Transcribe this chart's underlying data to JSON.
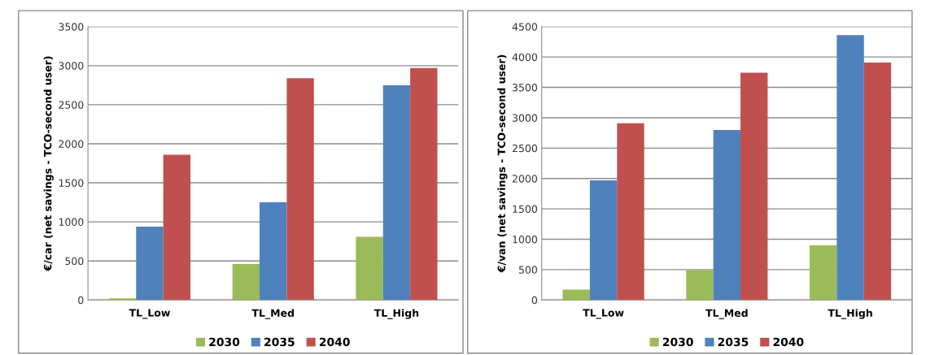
{
  "chart_data": [
    {
      "type": "bar",
      "ylabel": "€/car (net savings - TCO-second user)",
      "categories": [
        "TL_Low",
        "TL_Med",
        "TL_High"
      ],
      "ylim": [
        0,
        3500
      ],
      "yticks": [
        0,
        500,
        1000,
        1500,
        2000,
        2500,
        3000,
        3500
      ],
      "grid": "y",
      "legend": "bottom",
      "series": [
        {
          "name": "2030",
          "color": "#9bbb59",
          "values": [
            20,
            460,
            810
          ]
        },
        {
          "name": "2035",
          "color": "#4f81bd",
          "values": [
            940,
            1250,
            2750
          ]
        },
        {
          "name": "2040",
          "color": "#c0504d",
          "values": [
            1860,
            2840,
            2970
          ]
        }
      ]
    },
    {
      "type": "bar",
      "ylabel": "€/van (net savings - TCO-second user)",
      "categories": [
        "TL_Low",
        "TL_Med",
        "TL_High"
      ],
      "ylim": [
        0,
        4500
      ],
      "yticks": [
        0,
        500,
        1000,
        1500,
        2000,
        2500,
        3000,
        3500,
        4000,
        4500
      ],
      "grid": "y",
      "legend": "bottom",
      "series": [
        {
          "name": "2030",
          "color": "#9bbb59",
          "values": [
            170,
            490,
            900
          ]
        },
        {
          "name": "2035",
          "color": "#4f81bd",
          "values": [
            1970,
            2800,
            4360
          ]
        },
        {
          "name": "2040",
          "color": "#c0504d",
          "values": [
            2910,
            3740,
            3910
          ]
        }
      ]
    }
  ]
}
